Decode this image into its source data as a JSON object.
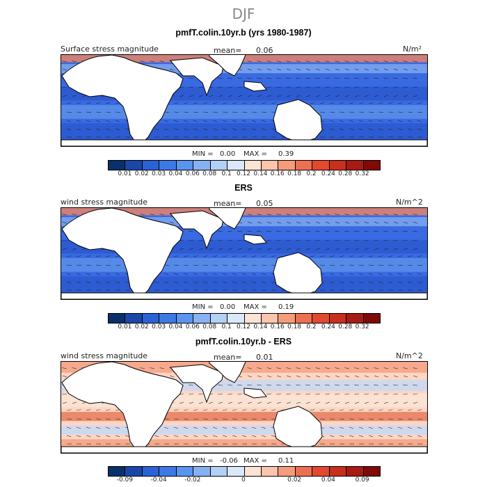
{
  "season": "DJF",
  "colors": [
    "#08306b",
    "#1a48a8",
    "#2b62d6",
    "#3d79e6",
    "#5b94ee",
    "#86b2f2",
    "#b3d0f6",
    "#dbe8fa",
    "#fde3d6",
    "#fbc4ac",
    "#f59c7a",
    "#ee7052",
    "#e2492e",
    "#c8301d",
    "#a71b12",
    "#7f0a08"
  ],
  "panels": [
    {
      "id": "model",
      "title": "pmfT.colin.10yr.b (yrs 1980-1987)",
      "variable": "Surface stress magnitude",
      "mean_label": "mean=",
      "mean_value": "0.06",
      "units": "N/m²",
      "min_label": "MIN =",
      "min_value": "0.00",
      "max_label": "MAX =",
      "max_value": "0.39",
      "ticks": [
        "0.01",
        "0.02",
        "0.03",
        "0.04",
        "0.06",
        "0.08",
        "0.1",
        "0.12",
        "0.14",
        "0.16",
        "0.18",
        "0.2",
        "0.24",
        "0.28",
        "0.32"
      ]
    },
    {
      "id": "obs",
      "title": "ERS",
      "variable": "wind stress magnitude",
      "mean_label": "mean=",
      "mean_value": "0.05",
      "units": "N/m^2",
      "min_label": "MIN =",
      "min_value": "0.00",
      "max_label": "MAX =",
      "max_value": "0.19",
      "ticks": [
        "0.01",
        "0.02",
        "0.03",
        "0.04",
        "0.06",
        "0.08",
        "0.1",
        "0.12",
        "0.14",
        "0.16",
        "0.18",
        "0.2",
        "0.24",
        "0.28",
        "0.32"
      ]
    },
    {
      "id": "diff",
      "title": "pmfT.colin.10yr.b - ERS",
      "variable": "wind stress magnitude",
      "mean_label": "mean=",
      "mean_value": "0.01",
      "units": "N/m^2",
      "min_label": "MIN =",
      "min_value": "-0.06",
      "max_label": "MAX =",
      "max_value": "0.11",
      "ticks": [
        "-0.09",
        "-0.04",
        "-0.02",
        "0",
        "0.02",
        "0.04",
        "0.09"
      ]
    }
  ],
  "chart_data": [
    {
      "type": "heatmap",
      "title": "pmfT.colin.10yr.b (yrs 1980-1987)",
      "variable": "Surface stress magnitude",
      "units": "N/m²",
      "mean": 0.06,
      "min": 0.0,
      "max": 0.39,
      "colorbar_levels": [
        0.01,
        0.02,
        0.03,
        0.04,
        0.06,
        0.08,
        0.1,
        0.12,
        0.14,
        0.16,
        0.18,
        0.2,
        0.24,
        0.28,
        0.32
      ]
    },
    {
      "type": "heatmap",
      "title": "ERS",
      "variable": "wind stress magnitude",
      "units": "N/m^2",
      "mean": 0.05,
      "min": 0.0,
      "max": 0.19,
      "colorbar_levels": [
        0.01,
        0.02,
        0.03,
        0.04,
        0.06,
        0.08,
        0.1,
        0.12,
        0.14,
        0.16,
        0.18,
        0.2,
        0.24,
        0.28,
        0.32
      ]
    },
    {
      "type": "heatmap",
      "title": "pmfT.colin.10yr.b - ERS",
      "variable": "wind stress magnitude",
      "units": "N/m^2",
      "mean": 0.01,
      "min": -0.06,
      "max": 0.11,
      "colorbar_levels": [
        -0.09,
        -0.04,
        -0.02,
        0,
        0.02,
        0.04,
        0.09
      ]
    }
  ]
}
